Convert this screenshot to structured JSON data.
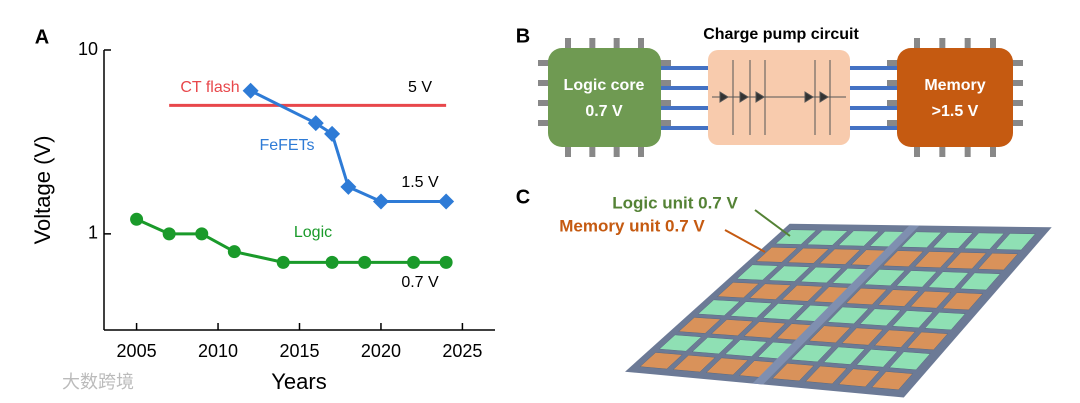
{
  "chart_data": {
    "type": "line",
    "panel_label": "A",
    "y_label": "Voltage (V)",
    "x_label": "Years",
    "log_y": true,
    "xlim": [
      2003,
      2027
    ],
    "xticks": [
      2005,
      2010,
      2015,
      2020,
      2025
    ],
    "ylim": [
      0.3,
      10
    ],
    "yticks": [
      1,
      10
    ],
    "series": [
      {
        "name": "CT flash",
        "color": "#e8474b",
        "marker": "none",
        "x": [
          2007,
          2024
        ],
        "values": [
          5,
          5
        ]
      },
      {
        "name": "FeFETs",
        "color": "#2e7bd6",
        "marker": "diamond",
        "x": [
          2012,
          2016,
          2017,
          2018,
          2020,
          2024
        ],
        "values": [
          6,
          4,
          3.5,
          1.8,
          1.5,
          1.5
        ]
      },
      {
        "name": "Logic",
        "color": "#1a9a2a",
        "marker": "circle",
        "x": [
          2005,
          2007,
          2009,
          2011,
          2014,
          2017,
          2019,
          2022,
          2024
        ],
        "values": [
          1.2,
          1.0,
          1.0,
          0.8,
          0.7,
          0.7,
          0.7,
          0.7,
          0.7
        ]
      }
    ],
    "annotations": [
      "5 V",
      "1.5 V",
      "0.7 V"
    ]
  },
  "panel_b": {
    "label": "B",
    "title": "Charge pump circuit",
    "logic": [
      "Logic core",
      "0.7 V"
    ],
    "memory": [
      "Memory",
      ">1.5 V"
    ]
  },
  "panel_c": {
    "label": "C",
    "logic_label": "Logic unit 0.7 V",
    "memory_label": "Memory unit 0.7 V"
  },
  "watermark": "大数跨境"
}
